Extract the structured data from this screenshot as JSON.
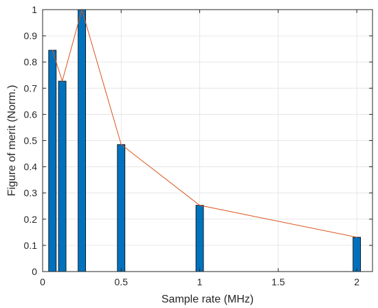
{
  "chart_data": {
    "type": "bar",
    "title": "",
    "xlabel": "Sample rate (MHz)",
    "ylabel": "Figure of merit (Norm.)",
    "xlim": [
      0,
      2.1
    ],
    "ylim": [
      0,
      1
    ],
    "xticks": [
      0,
      0.5,
      1,
      1.5,
      2
    ],
    "xtick_labels": [
      "0",
      "0.5",
      "1",
      "1.5",
      "2"
    ],
    "yticks": [
      0,
      0.1,
      0.2,
      0.3,
      0.4,
      0.5,
      0.6,
      0.7,
      0.8,
      0.9,
      1
    ],
    "ytick_labels": [
      "0",
      "0.1",
      "0.2",
      "0.3",
      "0.4",
      "0.5",
      "0.6",
      "0.7",
      "0.8",
      "0.9",
      "1"
    ],
    "grid": true,
    "series": [
      {
        "type": "bar",
        "x": [
          0.0625,
          0.125,
          0.25,
          0.5,
          1,
          2
        ],
        "values": [
          0.845,
          0.727,
          1.0,
          0.485,
          0.253,
          0.131
        ],
        "color": "#0072BD"
      },
      {
        "type": "line",
        "x": [
          0.0625,
          0.125,
          0.25,
          0.5,
          1,
          2
        ],
        "values": [
          0.845,
          0.727,
          1.0,
          0.485,
          0.253,
          0.131
        ],
        "color": "#D95319"
      }
    ]
  }
}
